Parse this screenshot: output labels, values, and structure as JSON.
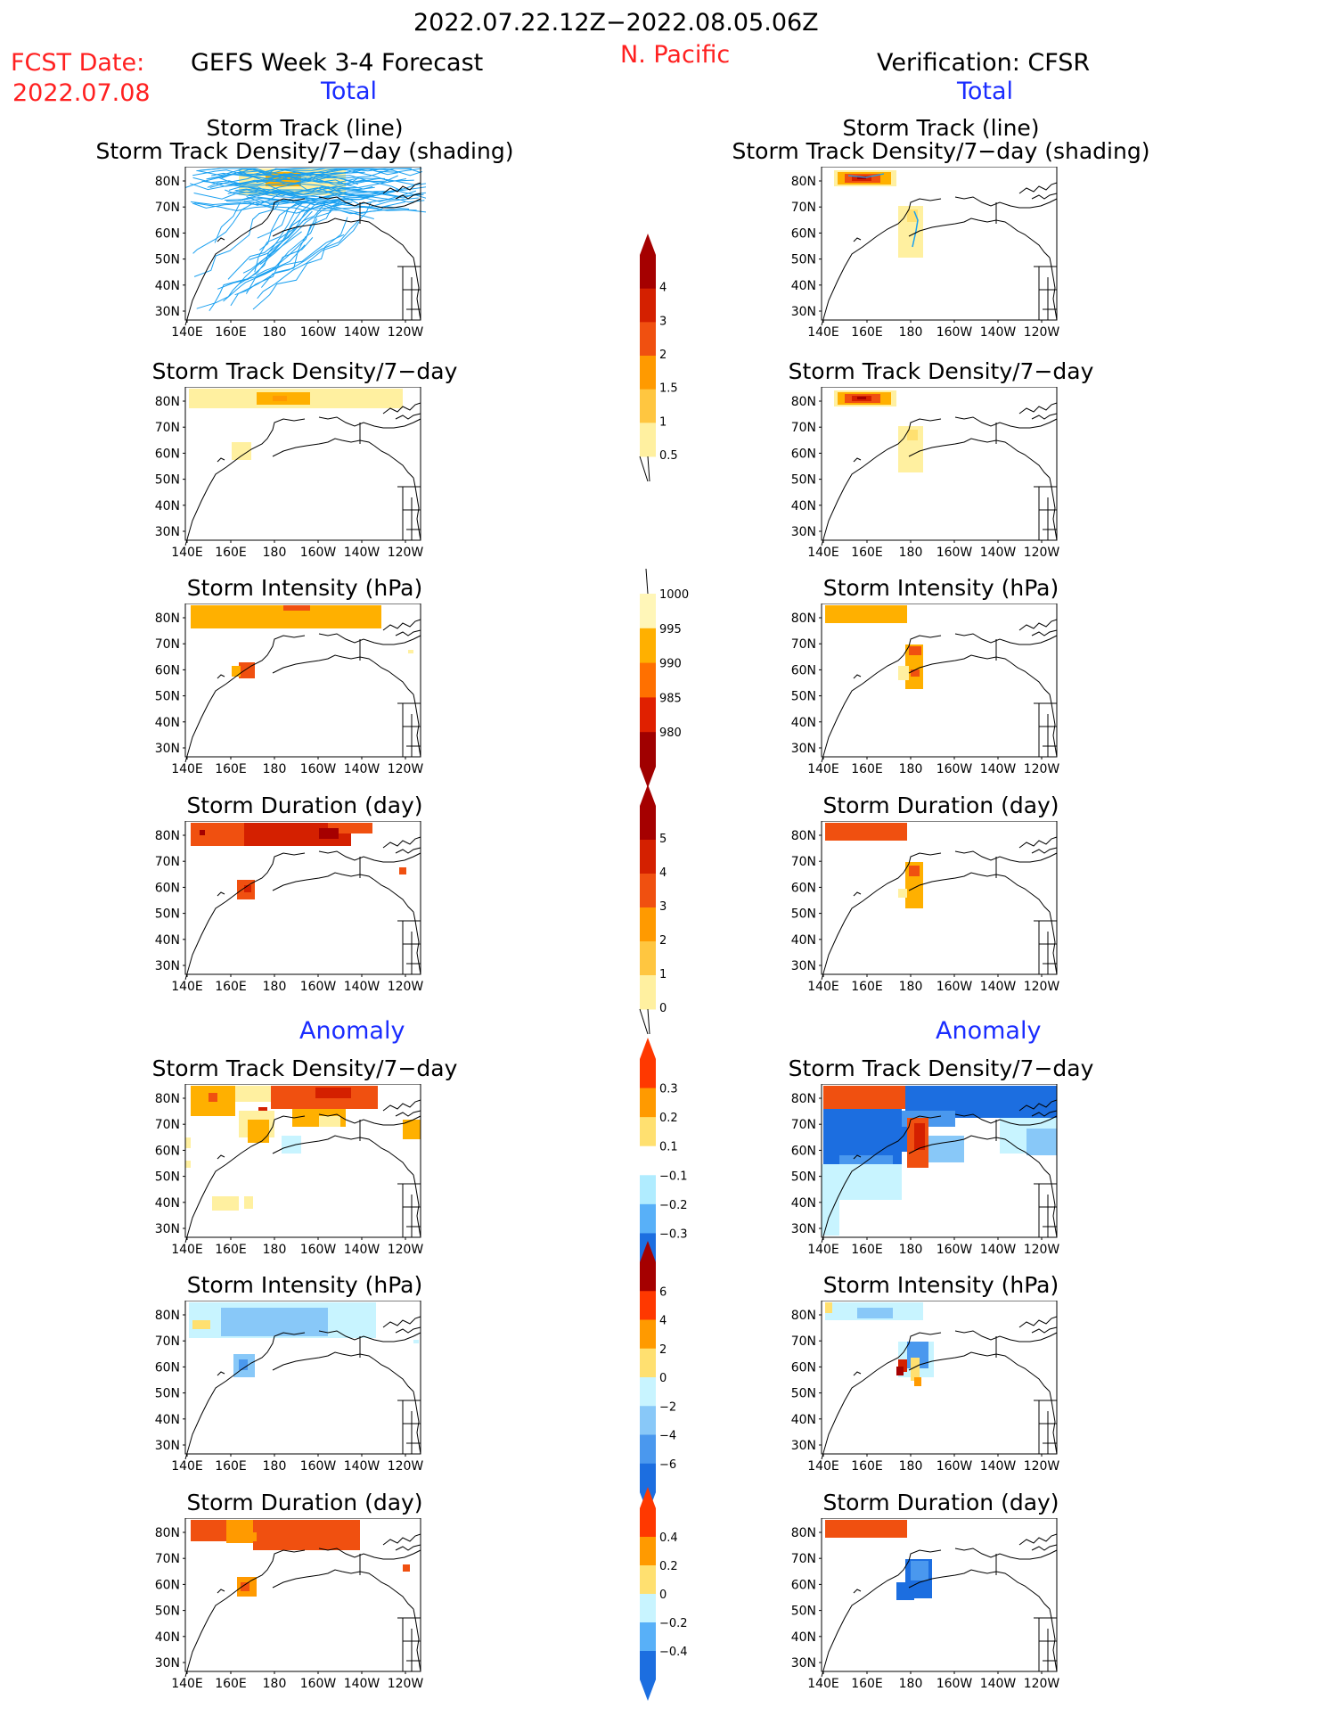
{
  "header": {
    "date_range": "2022.07.22.12Z−2022.08.05.06Z",
    "region": "N. Pacific",
    "fcst_label": "FCST Date:",
    "fcst_date": "2022.07.08",
    "left_title": "GEFS Week 3-4 Forecast",
    "right_title": "Verification: CFSR",
    "total_label": "Total",
    "anomaly_label": "Anomaly"
  },
  "axes": {
    "lat_labels": [
      "80N",
      "70N",
      "60N",
      "50N",
      "40N",
      "30N"
    ],
    "lon_labels": [
      "140E",
      "160E",
      "180",
      "160W",
      "140W",
      "120W"
    ]
  },
  "panel_titles": {
    "track": [
      "Storm Track (line)",
      "Storm Track Density/7−day (shading)"
    ],
    "density": "Storm Track Density/7−day",
    "intensity": "Storm Intensity (hPa)",
    "duration": "Storm Duration (day)"
  },
  "colorbars": [
    {
      "id": "density_total",
      "labels": [
        "4",
        "3",
        "2",
        "1.5",
        "1",
        "0.5"
      ],
      "colors": [
        "#a50000",
        "#d42000",
        "#f05010",
        "#ff9a00",
        "#ffc640",
        "#fff0a0"
      ]
    },
    {
      "id": "intensity_total",
      "labels": [
        "1000",
        "995",
        "990",
        "985",
        "980"
      ],
      "colors": [
        "#fff6b8",
        "#ffb000",
        "#ff7000",
        "#e02000",
        "#a00000"
      ]
    },
    {
      "id": "duration_total",
      "labels": [
        "5",
        "4",
        "3",
        "2",
        "1",
        "0"
      ],
      "colors": [
        "#a50000",
        "#d42000",
        "#f05010",
        "#ff9a00",
        "#ffc640",
        "#fff0a0"
      ]
    },
    {
      "id": "density_anom",
      "labels": [
        "0.3",
        "0.2",
        "0.1",
        "−0.1",
        "−0.2",
        "−0.3"
      ],
      "colors": [
        "#ff3800",
        "#ff9a00",
        "#ffe070",
        "#ffffff",
        "#b0ecff",
        "#58b0f8",
        "#1c6ee0"
      ]
    },
    {
      "id": "intensity_anom",
      "labels": [
        "6",
        "4",
        "2",
        "0",
        "−2",
        "−4",
        "−6"
      ],
      "colors": [
        "#a50000",
        "#ff3800",
        "#ff9a00",
        "#ffe070",
        "#c8f4ff",
        "#88c8f8",
        "#4a98ee",
        "#1c6ee0"
      ]
    },
    {
      "id": "duration_anom",
      "labels": [
        "0.4",
        "0.2",
        "0",
        "−0.2",
        "−0.4"
      ],
      "colors": [
        "#ff3800",
        "#ff9a00",
        "#ffe070",
        "#c8f4ff",
        "#58b0f8",
        "#1c6ee0"
      ]
    }
  ],
  "colors": {
    "header_red": "#ff2020",
    "label_blue": "#1a2cff",
    "track_line": "#1aa0f0"
  }
}
